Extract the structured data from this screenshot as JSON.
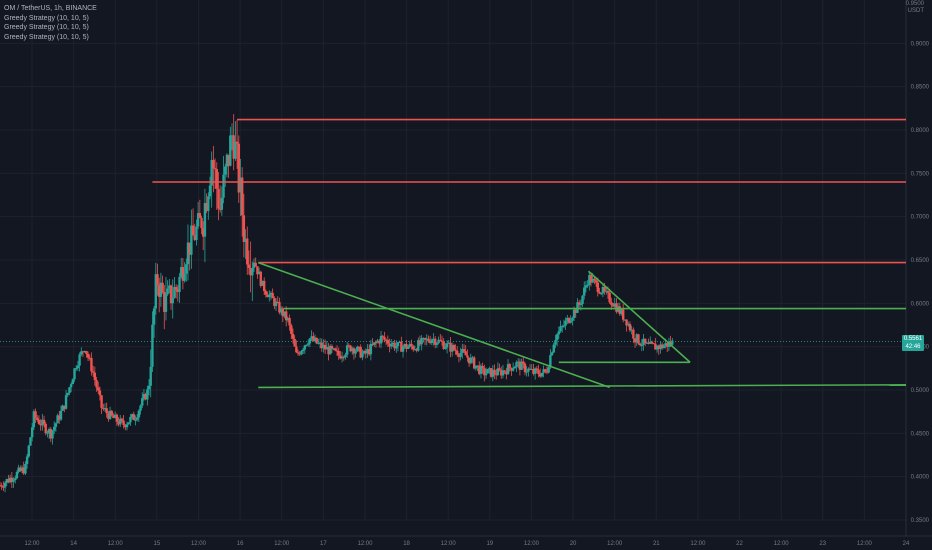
{
  "header": {
    "symbol_line": "OM / TetherUS, 1h, BINANCE",
    "indicators": [
      "Greedy Strategy (10, 10, 5)",
      "Greedy Strategy (10, 10, 5)",
      "Greedy Strategy (10, 10, 5)"
    ]
  },
  "price_axis": {
    "unit_top": "0.9500",
    "unit_label": "USDT"
  },
  "price_tag": {
    "value": "0.5561",
    "sub": "42:46"
  },
  "colors": {
    "background": "#131722",
    "up": "#26a69a",
    "down": "#ef5350",
    "resistance": "#ef5350",
    "support": "#4caf50",
    "grid": "#1e222d",
    "axis_text": "#787b86"
  },
  "chart_data": {
    "type": "candlestick",
    "title": "OM / TetherUS, 1h, BINANCE",
    "ylim": [
      0.35,
      0.95
    ],
    "y_ticks": [
      "0.3500",
      "0.4000",
      "0.4500",
      "0.5000",
      "0.5500",
      "0.6000",
      "0.6500",
      "0.7000",
      "0.7500",
      "0.8000",
      "0.8500",
      "0.9000"
    ],
    "x_ticks": [
      "12:00",
      "14",
      "12:00",
      "15",
      "12:00",
      "16",
      "12:00",
      "17",
      "12:00",
      "18",
      "12:00",
      "19",
      "12:00",
      "20",
      "12:00",
      "21",
      "12:00",
      "22",
      "12:00",
      "23",
      "12:00",
      "24"
    ],
    "x_domain": [
      0,
      21.4
    ],
    "price_path": [
      [
        0.0,
        0.39
      ],
      [
        0.3,
        0.4
      ],
      [
        0.6,
        0.41
      ],
      [
        0.8,
        0.47
      ],
      [
        1.0,
        0.46
      ],
      [
        1.2,
        0.45
      ],
      [
        1.5,
        0.48
      ],
      [
        1.8,
        0.53
      ],
      [
        2.0,
        0.55
      ],
      [
        2.2,
        0.52
      ],
      [
        2.4,
        0.48
      ],
      [
        2.6,
        0.47
      ],
      [
        2.9,
        0.46
      ],
      [
        3.2,
        0.47
      ],
      [
        3.5,
        0.5
      ],
      [
        3.7,
        0.63
      ],
      [
        3.9,
        0.6
      ],
      [
        4.2,
        0.62
      ],
      [
        4.4,
        0.66
      ],
      [
        4.6,
        0.68
      ],
      [
        4.8,
        0.7
      ],
      [
        5.0,
        0.77
      ],
      [
        5.2,
        0.71
      ],
      [
        5.5,
        0.8
      ],
      [
        5.6,
        0.76
      ],
      [
        5.8,
        0.67
      ],
      [
        6.0,
        0.65
      ],
      [
        6.2,
        0.62
      ],
      [
        6.5,
        0.6
      ],
      [
        6.8,
        0.58
      ],
      [
        7.0,
        0.54
      ],
      [
        7.3,
        0.56
      ],
      [
        7.6,
        0.55
      ],
      [
        8.0,
        0.54
      ],
      [
        8.3,
        0.55
      ],
      [
        8.6,
        0.54
      ],
      [
        9.0,
        0.56
      ],
      [
        9.4,
        0.55
      ],
      [
        9.8,
        0.55
      ],
      [
        10.2,
        0.56
      ],
      [
        10.6,
        0.55
      ],
      [
        11.0,
        0.54
      ],
      [
        11.4,
        0.52
      ],
      [
        11.8,
        0.52
      ],
      [
        12.2,
        0.53
      ],
      [
        12.6,
        0.52
      ],
      [
        12.9,
        0.52
      ],
      [
        13.1,
        0.56
      ],
      [
        13.4,
        0.58
      ],
      [
        13.7,
        0.6
      ],
      [
        13.9,
        0.63
      ],
      [
        14.1,
        0.62
      ],
      [
        14.3,
        0.61
      ],
      [
        14.5,
        0.6
      ],
      [
        14.8,
        0.58
      ],
      [
        15.0,
        0.56
      ],
      [
        15.3,
        0.55
      ],
      [
        15.6,
        0.55
      ],
      [
        15.9,
        0.555
      ]
    ],
    "resistance_lines": [
      {
        "from": [
          5.6,
          0.812
        ],
        "to": [
          21.4,
          0.812
        ]
      },
      {
        "from": [
          3.6,
          0.74
        ],
        "to": [
          21.4,
          0.74
        ]
      },
      {
        "from": [
          6.1,
          0.647
        ],
        "to": [
          21.4,
          0.647
        ]
      }
    ],
    "support_lines": [
      {
        "from": [
          6.7,
          0.594
        ],
        "to": [
          21.4,
          0.594
        ]
      },
      {
        "from": [
          6.1,
          0.503
        ],
        "to": [
          21.4,
          0.506
        ]
      },
      {
        "from": [
          13.2,
          0.532
        ],
        "to": [
          16.3,
          0.532
        ]
      },
      {
        "from": [
          6.1,
          0.647
        ],
        "to": [
          14.4,
          0.503
        ]
      },
      {
        "from": [
          13.9,
          0.637
        ],
        "to": [
          16.3,
          0.532
        ]
      }
    ]
  }
}
